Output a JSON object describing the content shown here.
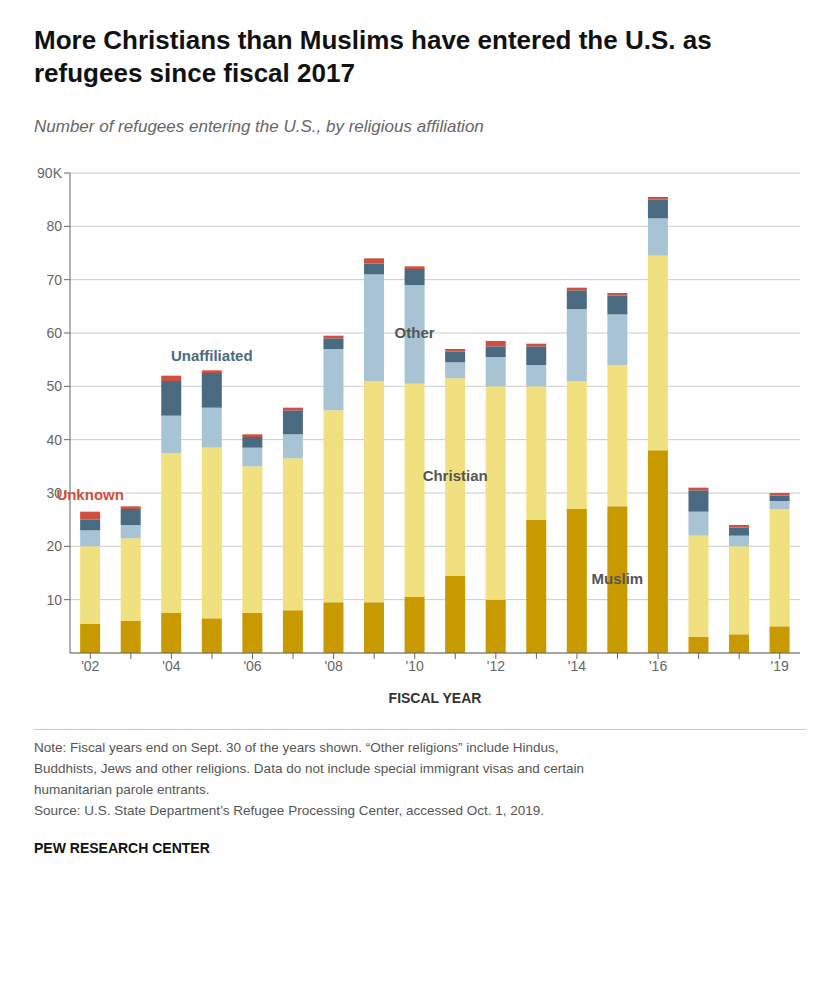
{
  "chart_data": {
    "type": "bar",
    "stacked": true,
    "title": "More Christians than Muslims have entered the U.S. as\nrefugees since fiscal 2017",
    "subtitle": "Number of refugees entering the U.S., by religious affiliation",
    "xlabel": "FISCAL YEAR",
    "categories": [
      "'02",
      null,
      "'04",
      null,
      "'06",
      null,
      "'08",
      null,
      "'10",
      null,
      "'12",
      null,
      "'14",
      null,
      "'16",
      null,
      null,
      "'19"
    ],
    "series": [
      {
        "name": "Muslim",
        "color": "#C89A00",
        "values": [
          5.5,
          6.0,
          7.5,
          6.5,
          7.5,
          8.0,
          9.5,
          9.5,
          10.5,
          14.5,
          10.0,
          25.0,
          27.0,
          27.5,
          38.0,
          3.0,
          3.5,
          5.0
        ]
      },
      {
        "name": "Christian",
        "color": "#F0E080",
        "values": [
          14.5,
          15.5,
          30.0,
          32.0,
          27.5,
          28.5,
          36.0,
          41.5,
          40.0,
          37.0,
          40.0,
          25.0,
          24.0,
          26.5,
          36.5,
          19.0,
          16.5,
          22.0
        ]
      },
      {
        "name": "Other",
        "color": "#A8C4D4",
        "values": [
          3.0,
          2.5,
          7.0,
          7.5,
          3.5,
          4.5,
          11.5,
          20.0,
          18.5,
          3.0,
          5.5,
          4.0,
          13.5,
          9.5,
          7.0,
          4.5,
          2.0,
          1.5
        ]
      },
      {
        "name": "Unaffiliated",
        "color": "#4A6A82",
        "values": [
          2.0,
          3.0,
          6.5,
          6.5,
          2.0,
          4.5,
          2.0,
          2.0,
          3.0,
          2.0,
          2.0,
          3.5,
          3.5,
          3.5,
          3.5,
          4.0,
          1.5,
          1.0
        ]
      },
      {
        "name": "Unknown",
        "color": "#D05040",
        "values": [
          1.5,
          0.5,
          1.0,
          0.5,
          0.5,
          0.5,
          0.5,
          1.0,
          0.5,
          0.5,
          1.0,
          0.5,
          0.5,
          0.5,
          0.5,
          0.5,
          0.5,
          0.5
        ]
      }
    ],
    "ylim": [
      0,
      90
    ],
    "yticks": [
      10,
      20,
      30,
      40,
      50,
      60,
      70,
      80,
      {
        "value": 90,
        "label": "90K"
      }
    ],
    "grid": true,
    "note": "Note: Fiscal years end on Sept. 30 of the years shown. “Other religions” include Hindus,\nBuddhists, Jews and other religions. Data do not include special immigrant visas and certain\nhumanitarian parole entrants.\nSource: U.S. State Department’s Refugee Processing Center, accessed Oct. 1, 2019.",
    "source": "PEW RESEARCH CENTER"
  }
}
